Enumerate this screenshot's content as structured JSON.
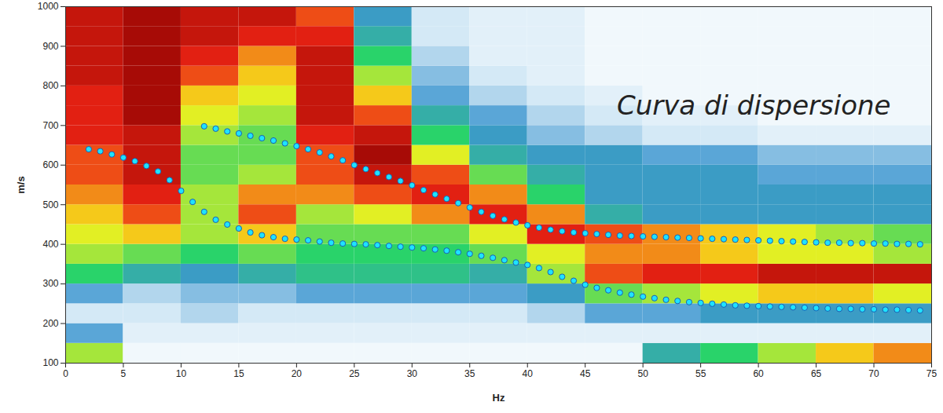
{
  "chart_data": {
    "type": "scatter",
    "annotations": [
      "Curva di dispersione"
    ],
    "xlabel": "Hz",
    "ylabel": "m/s",
    "xlim": [
      0,
      75
    ],
    "xticks": [
      0,
      5,
      10,
      15,
      20,
      25,
      30,
      35,
      40,
      45,
      50,
      55,
      60,
      65,
      70,
      75
    ],
    "ylim": [
      100,
      1000
    ],
    "yticks": [
      100,
      200,
      300,
      400,
      500,
      600,
      700,
      800,
      900,
      1000
    ],
    "grid": false,
    "heatmap": {
      "x_edges": [
        0,
        5,
        10,
        15,
        20,
        25,
        30,
        35,
        40,
        45,
        50,
        55,
        60,
        65,
        70,
        75
      ],
      "y_edges": [
        100,
        150,
        200,
        250,
        300,
        350,
        400,
        450,
        500,
        550,
        600,
        650,
        700,
        750,
        800,
        850,
        900,
        950,
        1000
      ],
      "zlim": [
        0,
        1
      ],
      "values": [
        [
          0.6,
          0.3,
          0.15,
          0.3,
          0.5,
          0.6,
          0.65,
          0.7,
          0.75,
          0.8,
          0.8,
          0.85,
          0.85,
          0.85,
          0.9,
          0.9,
          0.9,
          0.9
        ],
        [
          0.05,
          0.1,
          0.15,
          0.2,
          0.4,
          0.55,
          0.7,
          0.8,
          0.85,
          0.9,
          0.9,
          0.9,
          0.95,
          0.95,
          0.95,
          0.95,
          0.95,
          0.95
        ],
        [
          0.05,
          0.1,
          0.2,
          0.25,
          0.35,
          0.5,
          0.6,
          0.6,
          0.6,
          0.55,
          0.55,
          0.6,
          0.65,
          0.7,
          0.8,
          0.85,
          0.9,
          0.9
        ],
        [
          0.05,
          0.1,
          0.15,
          0.25,
          0.4,
          0.55,
          0.7,
          0.8,
          0.75,
          0.6,
          0.55,
          0.55,
          0.6,
          0.65,
          0.7,
          0.75,
          0.85,
          0.9
        ],
        [
          0.05,
          0.1,
          0.15,
          0.3,
          0.45,
          0.5,
          0.55,
          0.6,
          0.75,
          0.8,
          0.8,
          0.85,
          0.9,
          0.9,
          0.9,
          0.9,
          0.85,
          0.8
        ],
        [
          0.05,
          0.1,
          0.15,
          0.3,
          0.45,
          0.5,
          0.55,
          0.65,
          0.8,
          0.9,
          0.95,
          0.9,
          0.8,
          0.7,
          0.6,
          0.5,
          0.4,
          0.35
        ],
        [
          0.05,
          0.1,
          0.15,
          0.3,
          0.45,
          0.5,
          0.55,
          0.75,
          0.85,
          0.8,
          0.65,
          0.5,
          0.4,
          0.3,
          0.25,
          0.2,
          0.15,
          0.15
        ],
        [
          0.05,
          0.1,
          0.15,
          0.3,
          0.4,
          0.55,
          0.65,
          0.85,
          0.75,
          0.55,
          0.4,
          0.35,
          0.3,
          0.2,
          0.15,
          0.1,
          0.1,
          0.1
        ],
        [
          0.05,
          0.1,
          0.2,
          0.35,
          0.6,
          0.65,
          0.85,
          0.75,
          0.5,
          0.4,
          0.35,
          0.25,
          0.2,
          0.15,
          0.1,
          0.1,
          0.1,
          0.1
        ],
        [
          0.05,
          0.1,
          0.3,
          0.55,
          0.8,
          0.75,
          0.8,
          0.4,
          0.35,
          0.35,
          0.35,
          0.2,
          0.15,
          0.1,
          0.05,
          0.05,
          0.05,
          0.05
        ],
        [
          0.4,
          0.1,
          0.3,
          0.6,
          0.85,
          0.75,
          0.75,
          0.35,
          0.35,
          0.35,
          0.3,
          0.15,
          0.1,
          0.05,
          0.05,
          0.05,
          0.05,
          0.05
        ],
        [
          0.5,
          0.1,
          0.35,
          0.65,
          0.85,
          0.7,
          0.7,
          0.35,
          0.35,
          0.35,
          0.3,
          0.15,
          0.1,
          0.05,
          0.05,
          0.05,
          0.05,
          0.05
        ],
        [
          0.6,
          0.1,
          0.35,
          0.7,
          0.9,
          0.65,
          0.65,
          0.35,
          0.35,
          0.3,
          0.25,
          0.1,
          0.05,
          0.05,
          0.05,
          0.05,
          0.05,
          0.05
        ],
        [
          0.7,
          0.1,
          0.35,
          0.7,
          0.9,
          0.65,
          0.6,
          0.35,
          0.35,
          0.3,
          0.25,
          0.1,
          0.05,
          0.05,
          0.05,
          0.05,
          0.05,
          0.05
        ],
        [
          0.75,
          0.1,
          0.35,
          0.65,
          0.9,
          0.6,
          0.55,
          0.35,
          0.35,
          0.3,
          0.25,
          0.1,
          0.05,
          0.05,
          0.05,
          0.05,
          0.05,
          0.05
        ]
      ]
    },
    "series": [
      {
        "color": "#1ee3ff",
        "marker": "circle",
        "x": [
          2,
          3,
          4,
          5,
          6,
          7,
          8,
          9,
          10,
          11,
          12,
          13,
          14,
          15,
          16,
          17,
          18,
          19,
          20,
          21,
          22,
          23,
          24,
          25,
          26,
          27,
          28,
          29,
          30,
          31,
          32,
          33,
          34,
          35,
          36,
          37,
          38,
          39,
          40,
          41,
          42,
          43,
          44,
          45,
          46,
          47,
          48,
          49,
          50,
          51,
          52,
          53,
          54,
          55,
          56,
          57,
          58,
          59,
          60,
          61,
          62,
          63,
          64,
          65,
          66,
          67,
          68,
          69,
          70,
          71,
          72,
          73,
          74
        ],
        "values": [
          640,
          635,
          627,
          619,
          610,
          598,
          584,
          562,
          535,
          507,
          482,
          462,
          450,
          440,
          430,
          423,
          418,
          414,
          412,
          410,
          407,
          404,
          402,
          401,
          400,
          398,
          396,
          394,
          392,
          390,
          387,
          384,
          380,
          376,
          371,
          366,
          360,
          354,
          348,
          340,
          330,
          318,
          308,
          298,
          290,
          284,
          278,
          273,
          268,
          264,
          260,
          257,
          254,
          252,
          250,
          248,
          246,
          245,
          244,
          243,
          242,
          241,
          240,
          239,
          238,
          237,
          237,
          236,
          236,
          235,
          235,
          234,
          233
        ]
      },
      {
        "color": "#1ee3ff",
        "marker": "circle",
        "x": [
          12,
          13,
          14,
          15,
          16,
          17,
          18,
          19,
          20,
          21,
          22,
          23,
          24,
          25,
          26,
          27,
          28,
          29,
          30,
          31,
          32,
          33,
          34,
          35,
          36,
          37,
          38,
          39,
          40,
          41,
          42,
          43,
          44,
          45,
          46,
          47,
          48,
          49,
          50,
          51,
          52,
          53,
          54,
          55,
          56,
          57,
          58,
          59,
          60,
          61,
          62,
          63,
          64,
          65,
          66,
          67,
          68,
          69,
          70,
          71,
          72,
          73,
          74
        ],
        "values": [
          698,
          692,
          685,
          680,
          674,
          668,
          662,
          655,
          648,
          640,
          632,
          622,
          612,
          600,
          590,
          580,
          570,
          560,
          549,
          537,
          526,
          515,
          504,
          493,
          482,
          472,
          463,
          455,
          448,
          442,
          437,
          433,
          430,
          428,
          426,
          424,
          422,
          421,
          420,
          419,
          418,
          417,
          416,
          415,
          414,
          413,
          412,
          411,
          410,
          409,
          408,
          407,
          406,
          405,
          404,
          404,
          403,
          403,
          402,
          402,
          401,
          401,
          400
        ]
      }
    ]
  }
}
